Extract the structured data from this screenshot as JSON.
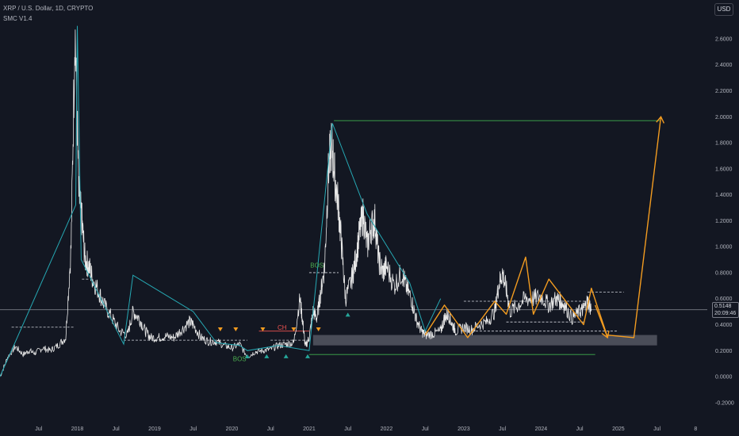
{
  "header": {
    "symbol": "XRP / U.S. Dollar, 1D, CRYPTO",
    "indicator": "SMC V1.4"
  },
  "currency_button": "USD",
  "last_price": {
    "value": "0.5148",
    "countdown": "20:09:46"
  },
  "colors": {
    "background": "#131722",
    "price": "#e8e8e8",
    "swing": "#26a9b4",
    "projection": "#f39c20",
    "bos": "#4caf50",
    "choch": "#ef5350",
    "zone": "#5d606b",
    "grid": "#1e222d",
    "target_line": "#3fae4e",
    "arrow_up": "#26a69a",
    "arrow_down": "#f39c20"
  },
  "chart_data": {
    "type": "line",
    "title": "XRP / U.S. Dollar, 1D, CRYPTO",
    "x_ticks": [
      "Jul",
      "2018",
      "Jul",
      "2019",
      "Jul",
      "2020",
      "Jul",
      "2021",
      "Jul",
      "2022",
      "Jul",
      "2023",
      "Jul",
      "2024",
      "Jul",
      "2025",
      "Jul",
      "8"
    ],
    "y_ticks": [
      "2.8000",
      "2.6000",
      "2.4000",
      "2.2000",
      "2.0000",
      "1.8000",
      "1.6000",
      "1.4000",
      "1.2000",
      "1.0000",
      "0.8000",
      "0.6000",
      "0.4000",
      "0.2000",
      "0.0000",
      "-0.2000"
    ],
    "ylim": [
      -0.25,
      2.85
    ],
    "xlim": [
      2017.0,
      2026.15
    ],
    "grid": false,
    "series": [
      {
        "values_x": [
          2017.0,
          2017.1,
          2017.2,
          2017.3,
          2017.38,
          2017.45,
          2017.55,
          2017.65,
          2017.75,
          2017.85,
          2017.92,
          2017.97,
          2018.02,
          2018.06,
          2018.1,
          2018.15,
          2018.2,
          2018.28,
          2018.35,
          2018.45,
          2018.55,
          2018.65,
          2018.72,
          2018.8,
          2018.88,
          2018.95,
          2019.05,
          2019.15,
          2019.25,
          2019.35,
          2019.45,
          2019.5,
          2019.6,
          2019.7,
          2019.8,
          2019.9,
          2020.0,
          2020.1,
          2020.2,
          2020.3,
          2020.4,
          2020.5,
          2020.6,
          2020.7,
          2020.8,
          2020.88,
          2020.92,
          2020.95,
          2021.0,
          2021.05,
          2021.1,
          2021.15,
          2021.2,
          2021.25,
          2021.29,
          2021.33,
          2021.38,
          2021.42,
          2021.47,
          2021.55,
          2021.6,
          2021.65,
          2021.7,
          2021.75,
          2021.8,
          2021.85,
          2021.9,
          2021.95,
          2022.0,
          2022.1,
          2022.2,
          2022.25,
          2022.32,
          2022.38,
          2022.45,
          2022.5,
          2022.6,
          2022.7,
          2022.75,
          2022.8,
          2022.85,
          2022.9,
          2023.0,
          2023.1,
          2023.2,
          2023.3,
          2023.4,
          2023.45,
          2023.5,
          2023.55,
          2023.6,
          2023.7,
          2023.8,
          2023.9,
          2024.0,
          2024.1,
          2024.2,
          2024.25,
          2024.3,
          2024.4,
          2024.5,
          2024.55,
          2024.6,
          2024.65
        ],
        "values_y": [
          0.0,
          0.15,
          0.23,
          0.17,
          0.2,
          0.18,
          0.22,
          0.2,
          0.24,
          0.3,
          1.0,
          2.7,
          1.4,
          1.2,
          0.9,
          0.85,
          0.75,
          0.65,
          0.55,
          0.45,
          0.35,
          0.32,
          0.5,
          0.45,
          0.35,
          0.3,
          0.3,
          0.31,
          0.3,
          0.36,
          0.42,
          0.4,
          0.3,
          0.27,
          0.27,
          0.24,
          0.22,
          0.25,
          0.15,
          0.19,
          0.2,
          0.21,
          0.24,
          0.25,
          0.26,
          0.6,
          0.4,
          0.23,
          0.3,
          0.5,
          0.45,
          0.65,
          0.85,
          1.6,
          1.8,
          1.55,
          1.3,
          1.0,
          0.6,
          0.75,
          0.9,
          1.1,
          1.25,
          1.0,
          1.15,
          1.2,
          0.9,
          0.8,
          0.85,
          0.7,
          0.8,
          0.7,
          0.6,
          0.45,
          0.35,
          0.32,
          0.33,
          0.35,
          0.45,
          0.48,
          0.4,
          0.35,
          0.38,
          0.36,
          0.4,
          0.42,
          0.5,
          0.7,
          0.8,
          0.67,
          0.5,
          0.55,
          0.6,
          0.6,
          0.62,
          0.55,
          0.6,
          0.58,
          0.55,
          0.45,
          0.5,
          0.52,
          0.58,
          0.52
        ]
      }
    ],
    "swing_path": [
      [
        2017.0,
        0.0
      ],
      [
        2017.98,
        1.32
      ],
      [
        2018.0,
        2.7
      ],
      [
        2018.05,
        0.9
      ],
      [
        2018.6,
        0.25
      ],
      [
        2018.72,
        0.78
      ],
      [
        2019.5,
        0.5
      ],
      [
        2019.8,
        0.26
      ],
      [
        2020.1,
        0.24
      ],
      [
        2020.2,
        0.2
      ],
      [
        2020.6,
        0.24
      ],
      [
        2021.0,
        0.2
      ],
      [
        2021.3,
        1.95
      ],
      [
        2021.75,
        1.25
      ],
      [
        2022.3,
        0.72
      ],
      [
        2022.5,
        0.35
      ],
      [
        2022.7,
        0.6
      ]
    ],
    "projection_path": [
      [
        2022.5,
        0.32
      ],
      [
        2022.75,
        0.55
      ],
      [
        2023.05,
        0.3
      ],
      [
        2023.4,
        0.58
      ],
      [
        2023.55,
        0.48
      ],
      [
        2023.8,
        0.92
      ],
      [
        2023.9,
        0.48
      ],
      [
        2024.1,
        0.75
      ],
      [
        2024.55,
        0.4
      ],
      [
        2024.65,
        0.68
      ],
      [
        2024.85,
        0.32
      ],
      [
        2025.2,
        0.3
      ],
      [
        2025.55,
        2.0
      ]
    ],
    "projection_arrow": [
      [
        2024.7,
        0.55
      ],
      [
        2024.86,
        0.3
      ]
    ],
    "levels": [
      {
        "y": 0.38,
        "x0": 2017.15,
        "x1": 2017.95
      },
      {
        "y": 0.28,
        "x0": 2018.6,
        "x1": 2020.2
      },
      {
        "y": 0.75,
        "x0": 2018.06,
        "x1": 2018.15
      },
      {
        "y": 0.8,
        "x0": 2021.0,
        "x1": 2021.38
      },
      {
        "y": 0.28,
        "x0": 2020.5,
        "x1": 2021.0
      },
      {
        "y": 0.58,
        "x0": 2023.0,
        "x1": 2024.6
      },
      {
        "y": 0.42,
        "x0": 2023.55,
        "x1": 2024.55
      },
      {
        "y": 0.65,
        "x0": 2024.6,
        "x1": 2025.07
      },
      {
        "y": 0.35,
        "x0": 2023.0,
        "x1": 2025.0
      }
    ],
    "target_line": {
      "y": 1.97,
      "x0": 2021.32,
      "x1": 2025.55
    },
    "support_line": {
      "y": 0.17,
      "x0": 2021.0,
      "x1": 2024.7
    },
    "demand_zone": {
      "y0": 0.24,
      "y1": 0.32,
      "x0": 2021.05,
      "x1": 2025.5
    },
    "choch_line": {
      "y": 0.35,
      "x0": 2020.35,
      "x1": 2021.0
    },
    "last_price_line": 0.5148,
    "labels": [
      {
        "text": "BOS",
        "x": 2021.1,
        "y": 0.84,
        "kind": "bos"
      },
      {
        "text": "CH",
        "x": 2020.65,
        "y": 0.36,
        "kind": "choch"
      },
      {
        "text": "BOS",
        "x": 2020.1,
        "y": 0.12,
        "kind": "bos"
      }
    ],
    "down_arrows": [
      2019.85,
      2020.05,
      2020.4,
      2020.8,
      2021.12
    ],
    "up_arrows": [
      2020.2,
      2020.45,
      2020.7,
      2020.98,
      2021.5
    ]
  }
}
